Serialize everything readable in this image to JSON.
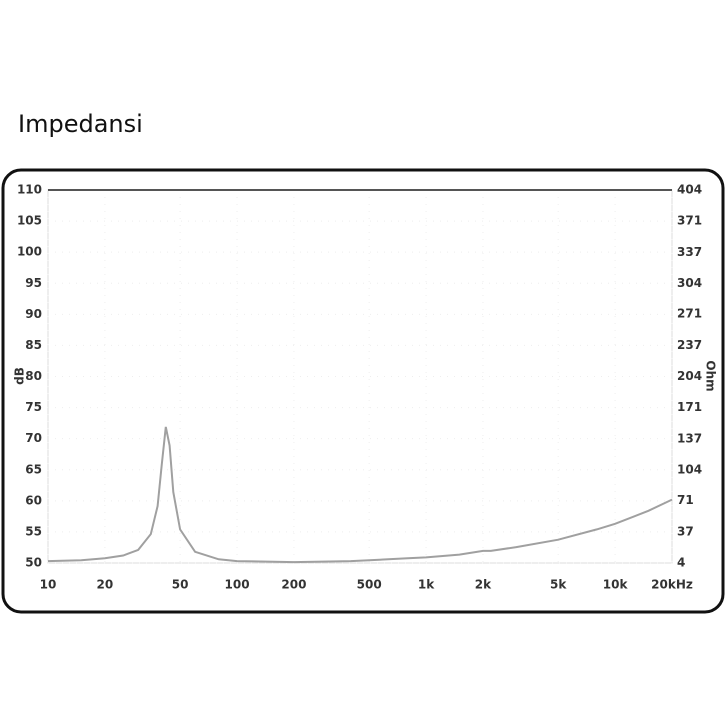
{
  "chart_data": {
    "type": "line",
    "title": "Impedansi",
    "ylabel": "dB",
    "y2label": "Ohm",
    "xscale": "log",
    "grid": true,
    "color": "#a0a0a0",
    "axis": "y2",
    "xlim": [
      10,
      20000
    ],
    "ylim": [
      50,
      110
    ],
    "y2lim": [
      4,
      404
    ],
    "xticks": [
      10,
      20,
      50,
      100,
      200,
      500,
      {
        "value": 1000,
        "label": "1k"
      },
      {
        "value": 2000,
        "label": "2k"
      },
      {
        "value": 5000,
        "label": "5k"
      },
      {
        "value": 10000,
        "label": "10k"
      },
      {
        "value": 20000,
        "label": "20kHz"
      }
    ],
    "yticks": [
      50,
      55,
      60,
      65,
      70,
      75,
      80,
      85,
      90,
      95,
      100,
      105,
      110
    ],
    "y2ticks": [
      4,
      37,
      71,
      104,
      137,
      171,
      204,
      237,
      271,
      304,
      337,
      371,
      404
    ],
    "x": [
      10,
      15,
      20,
      25,
      30,
      35,
      38,
      40,
      42,
      44,
      46,
      50,
      60,
      80,
      100,
      200,
      400,
      500,
      800,
      1000,
      1500,
      2000,
      2200,
      3000,
      5000,
      8000,
      10000,
      15000,
      20000
    ],
    "values": [
      6,
      7,
      9,
      12,
      18,
      35,
      65,
      110,
      150,
      130,
      80,
      40,
      16,
      8,
      6,
      5,
      6,
      7,
      9,
      10,
      13,
      17,
      17,
      21,
      29,
      40,
      46,
      60,
      72
    ]
  }
}
